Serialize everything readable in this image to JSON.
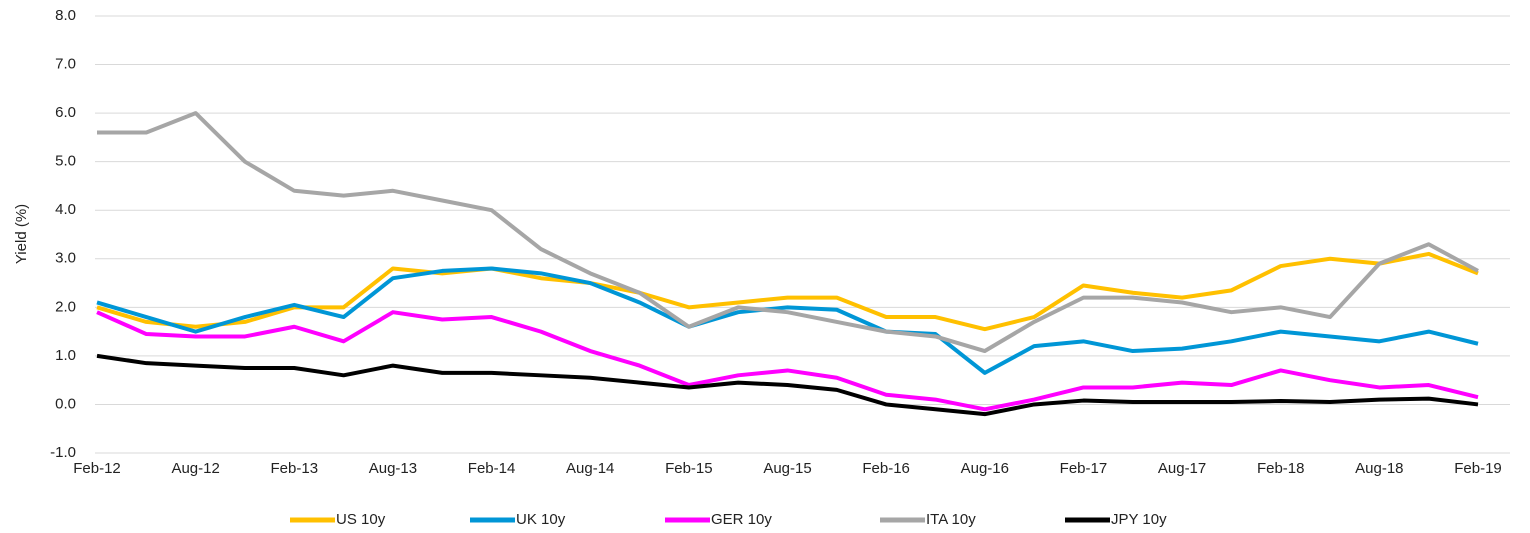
{
  "chart_data": {
    "type": "line",
    "y_label": "Yield (%)",
    "categories": [
      "Feb-12",
      null,
      "Aug-12",
      null,
      "Feb-13",
      null,
      "Aug-13",
      null,
      "Feb-14",
      null,
      "Aug-14",
      null,
      "Feb-15",
      null,
      "Aug-15",
      null,
      "Feb-16",
      null,
      "Aug-16",
      null,
      "Feb-17",
      null,
      "Aug-17",
      null,
      "Feb-18",
      null,
      "Aug-18",
      null,
      "Feb-19"
    ],
    "series": [
      {
        "name": "US 10y",
        "color": "#ffc000",
        "values": [
          2.0,
          1.7,
          1.6,
          1.7,
          2.0,
          2.0,
          2.8,
          2.7,
          2.8,
          2.6,
          2.5,
          2.3,
          2.0,
          2.1,
          2.2,
          2.2,
          1.8,
          1.8,
          1.55,
          1.8,
          2.45,
          2.3,
          2.2,
          2.35,
          2.85,
          3.0,
          2.9,
          3.1,
          2.7
        ]
      },
      {
        "name": "UK 10y",
        "color": "#0096d6",
        "values": [
          2.1,
          1.8,
          1.5,
          1.8,
          2.05,
          1.8,
          2.6,
          2.75,
          2.8,
          2.7,
          2.5,
          2.1,
          1.6,
          1.9,
          2.0,
          1.95,
          1.5,
          1.45,
          0.65,
          1.2,
          1.3,
          1.1,
          1.15,
          1.3,
          1.5,
          1.4,
          1.3,
          1.5,
          1.25
        ]
      },
      {
        "name": "GER 10y",
        "color": "#ff00ff",
        "values": [
          1.9,
          1.45,
          1.4,
          1.4,
          1.6,
          1.3,
          1.9,
          1.75,
          1.8,
          1.5,
          1.1,
          0.8,
          0.4,
          0.6,
          0.7,
          0.55,
          0.2,
          0.1,
          -0.1,
          0.1,
          0.35,
          0.35,
          0.45,
          0.4,
          0.7,
          0.5,
          0.35,
          0.4,
          0.15
        ]
      },
      {
        "name": "ITA 10y",
        "color": "#a6a6a6",
        "values": [
          5.6,
          5.6,
          6.0,
          5.0,
          4.4,
          4.3,
          4.4,
          4.2,
          4.0,
          3.2,
          2.7,
          2.3,
          1.6,
          2.0,
          1.9,
          1.7,
          1.5,
          1.4,
          1.1,
          1.7,
          2.2,
          2.2,
          2.1,
          1.9,
          2.0,
          1.8,
          2.9,
          3.3,
          2.75
        ]
      },
      {
        "name": "JPY 10y",
        "color": "#000000",
        "values": [
          1.0,
          0.85,
          0.8,
          0.75,
          0.75,
          0.6,
          0.8,
          0.65,
          0.65,
          0.6,
          0.55,
          0.45,
          0.35,
          0.45,
          0.4,
          0.3,
          0.0,
          -0.1,
          -0.2,
          0.0,
          0.08,
          0.05,
          0.05,
          0.05,
          0.07,
          0.05,
          0.1,
          0.12,
          0.0
        ]
      }
    ],
    "ylim": [
      -1,
      8
    ],
    "yticks": [
      {
        "value": -1,
        "label": "-1.0"
      },
      {
        "value": 0,
        "label": "0.0"
      },
      {
        "value": 1,
        "label": "1.0"
      },
      {
        "value": 2,
        "label": "2.0"
      },
      {
        "value": 3,
        "label": "3.0"
      },
      {
        "value": 4,
        "label": "4.0"
      },
      {
        "value": 5,
        "label": "5.0"
      },
      {
        "value": 6,
        "label": "6.0"
      },
      {
        "value": 7,
        "label": "7.0"
      },
      {
        "value": 8,
        "label": "8.0"
      }
    ],
    "grid": true,
    "legend": "bottom"
  }
}
